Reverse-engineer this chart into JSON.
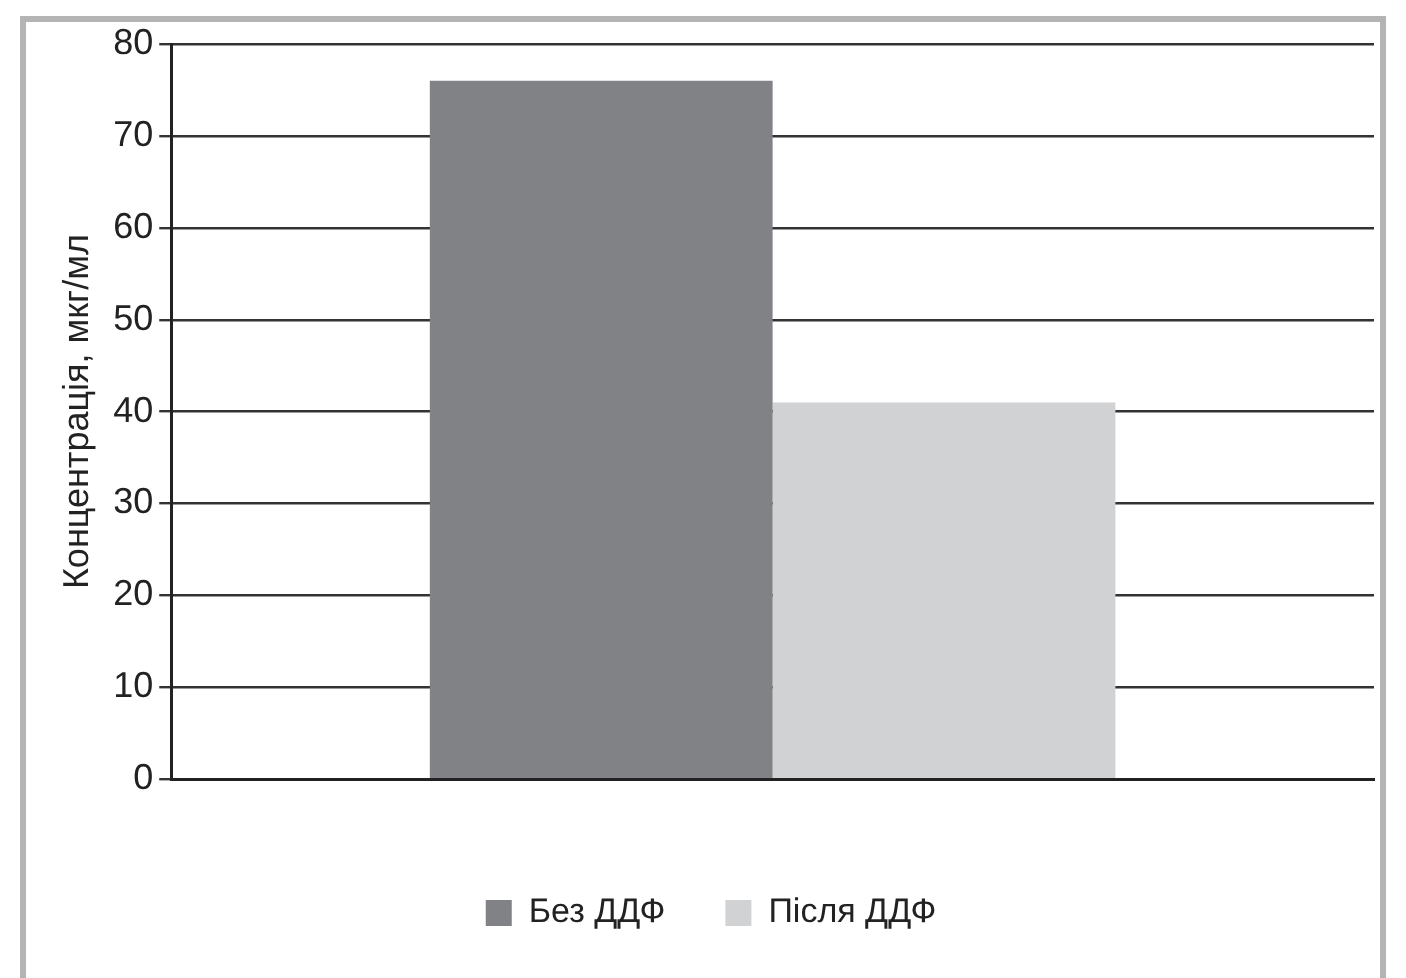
{
  "chart_data": {
    "type": "bar",
    "ylabel": "Концентрація, мкг/мл",
    "categories": [
      null
    ],
    "series": [
      {
        "name": "Без ДДФ",
        "color": "#818285",
        "values": [
          76
        ]
      },
      {
        "name": "Після ДДФ",
        "color": "#d1d2d4",
        "values": [
          41
        ]
      }
    ],
    "ylim": [
      0,
      80
    ],
    "yticks": [
      0,
      10,
      20,
      30,
      40,
      50,
      60,
      70,
      80
    ],
    "grid": "y",
    "legend": "bottom"
  }
}
